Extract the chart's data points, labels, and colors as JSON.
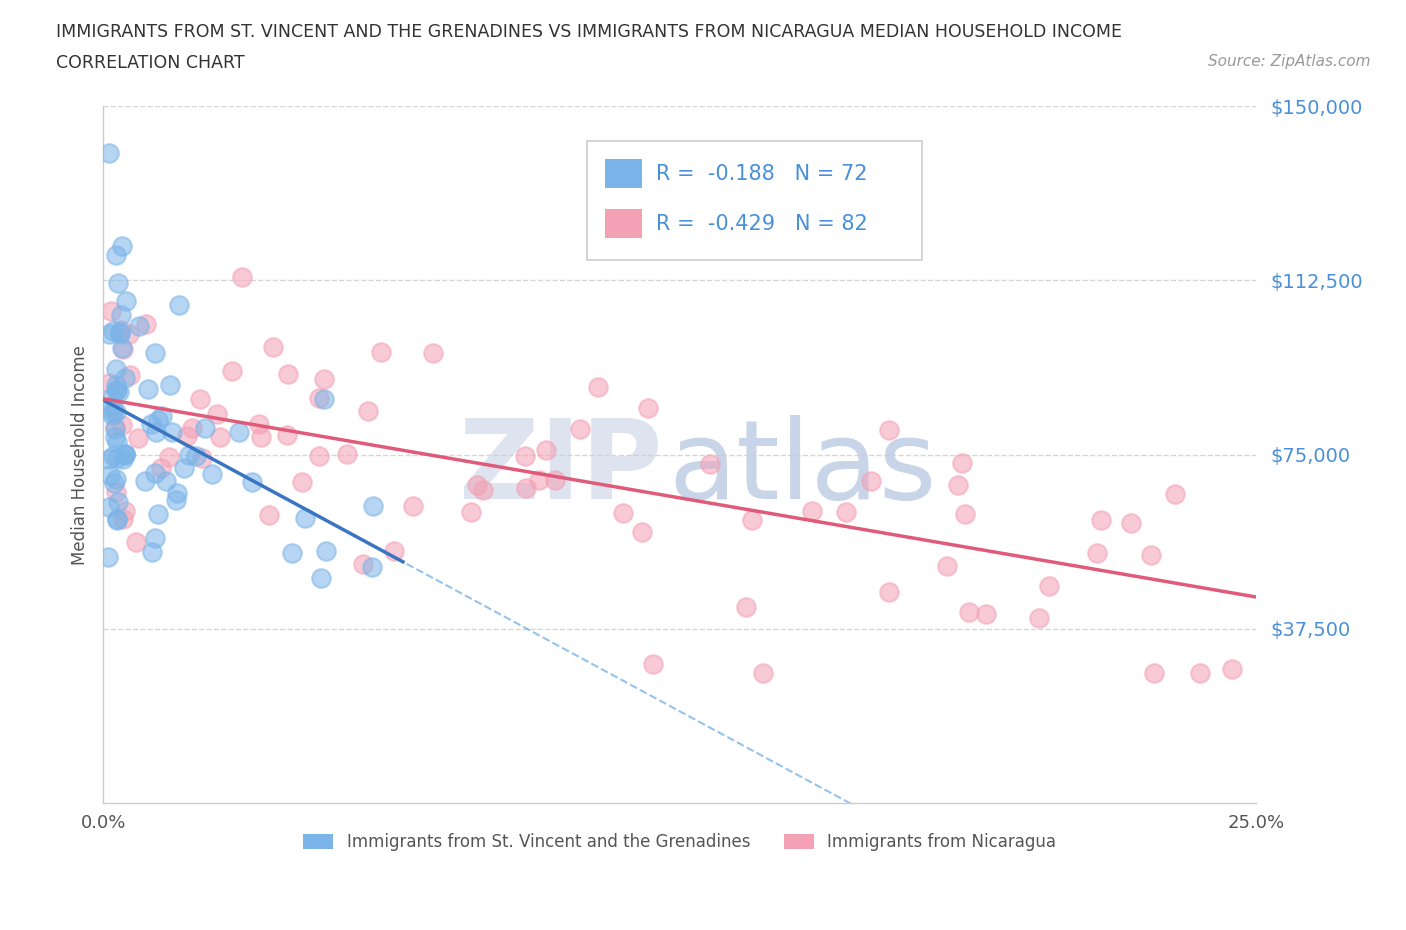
{
  "title_line1": "IMMIGRANTS FROM ST. VINCENT AND THE GRENADINES VS IMMIGRANTS FROM NICARAGUA MEDIAN HOUSEHOLD INCOME",
  "title_line2": "CORRELATION CHART",
  "source": "Source: ZipAtlas.com",
  "ylabel": "Median Household Income",
  "xlim": [
    0.0,
    0.25
  ],
  "ylim": [
    0,
    150000
  ],
  "yticks": [
    0,
    37500,
    75000,
    112500,
    150000
  ],
  "ytick_labels": [
    "",
    "$37,500",
    "$75,000",
    "$112,500",
    "$150,000"
  ],
  "xticks": [
    0.0,
    0.05,
    0.1,
    0.15,
    0.2,
    0.25
  ],
  "xtick_labels": [
    "0.0%",
    "",
    "",
    "",
    "",
    "25.0%"
  ],
  "series1": {
    "name": "Immigrants from St. Vincent and the Grenadines",
    "marker_color": "#7ab4e8",
    "line_color": "#3a75c4",
    "dash_color": "#7ab4e8",
    "R": -0.188,
    "N": 72
  },
  "series2": {
    "name": "Immigrants from Nicaragua",
    "marker_color": "#f4a0b5",
    "line_color": "#e05a7a",
    "R": -0.429,
    "N": 82
  },
  "background_color": "#ffffff",
  "grid_color": "#cccccc",
  "axis_color": "#4a90d9",
  "title_color": "#333333",
  "watermark_zip_color": "#dde4ef",
  "watermark_atlas_color": "#c8d4e8"
}
